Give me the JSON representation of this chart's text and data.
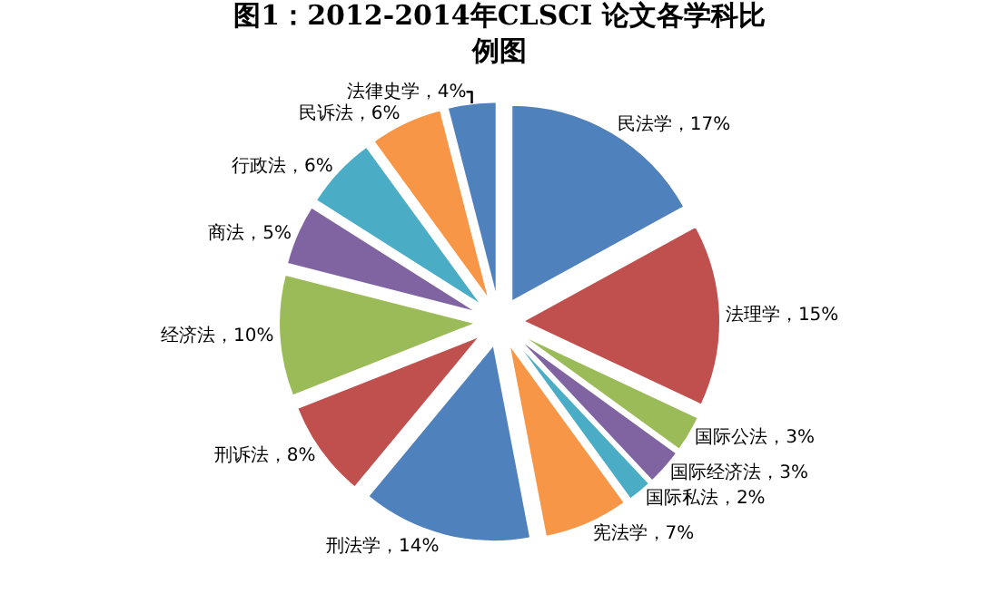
{
  "chart_data": {
    "type": "pie",
    "title": "图1：2012-2014年CLSCI 论文各学科比例图",
    "categories": [
      "民法学",
      "法理学",
      "国际公法",
      "国际经济法",
      "国际私法",
      "宪法学",
      "刑法学",
      "刑诉法",
      "经济法",
      "商法",
      "行政法",
      "民诉法",
      "法律史学"
    ],
    "values": [
      17,
      15,
      3,
      3,
      2,
      7,
      14,
      8,
      10,
      5,
      6,
      6,
      4
    ],
    "value_labels": [
      "17%",
      "15%",
      "3%",
      "3%",
      "2%",
      "7%",
      "14%",
      "8%",
      "10%",
      "5%",
      "6%",
      "6%",
      "4%"
    ],
    "colors": [
      "#4f81bd",
      "#c0504d",
      "#9bbb59",
      "#8064a2",
      "#4bacc6",
      "#f79646",
      "#4f81bd",
      "#c0504d",
      "#9bbb59",
      "#8064a2",
      "#4bacc6",
      "#f79646",
      "#4f81bd"
    ],
    "legend": false
  }
}
